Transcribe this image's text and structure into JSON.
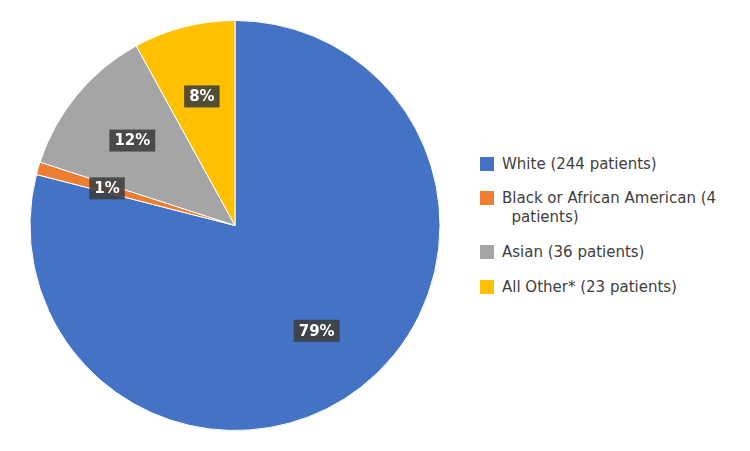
{
  "chart_data": {
    "type": "pie",
    "categories": [
      "White (244 patients)",
      "Black or African American (4\n  patients)",
      "Asian (36 patients)",
      "All Other* (23 patients)"
    ],
    "values": [
      79,
      1,
      12,
      8
    ],
    "value_labels": [
      "79%",
      "1%",
      "12%",
      "8%"
    ],
    "colors": [
      "#4472C4",
      "#ED7D31",
      "#A5A5A5",
      "#FFC000"
    ],
    "data_labels": true,
    "legend": "right"
  }
}
